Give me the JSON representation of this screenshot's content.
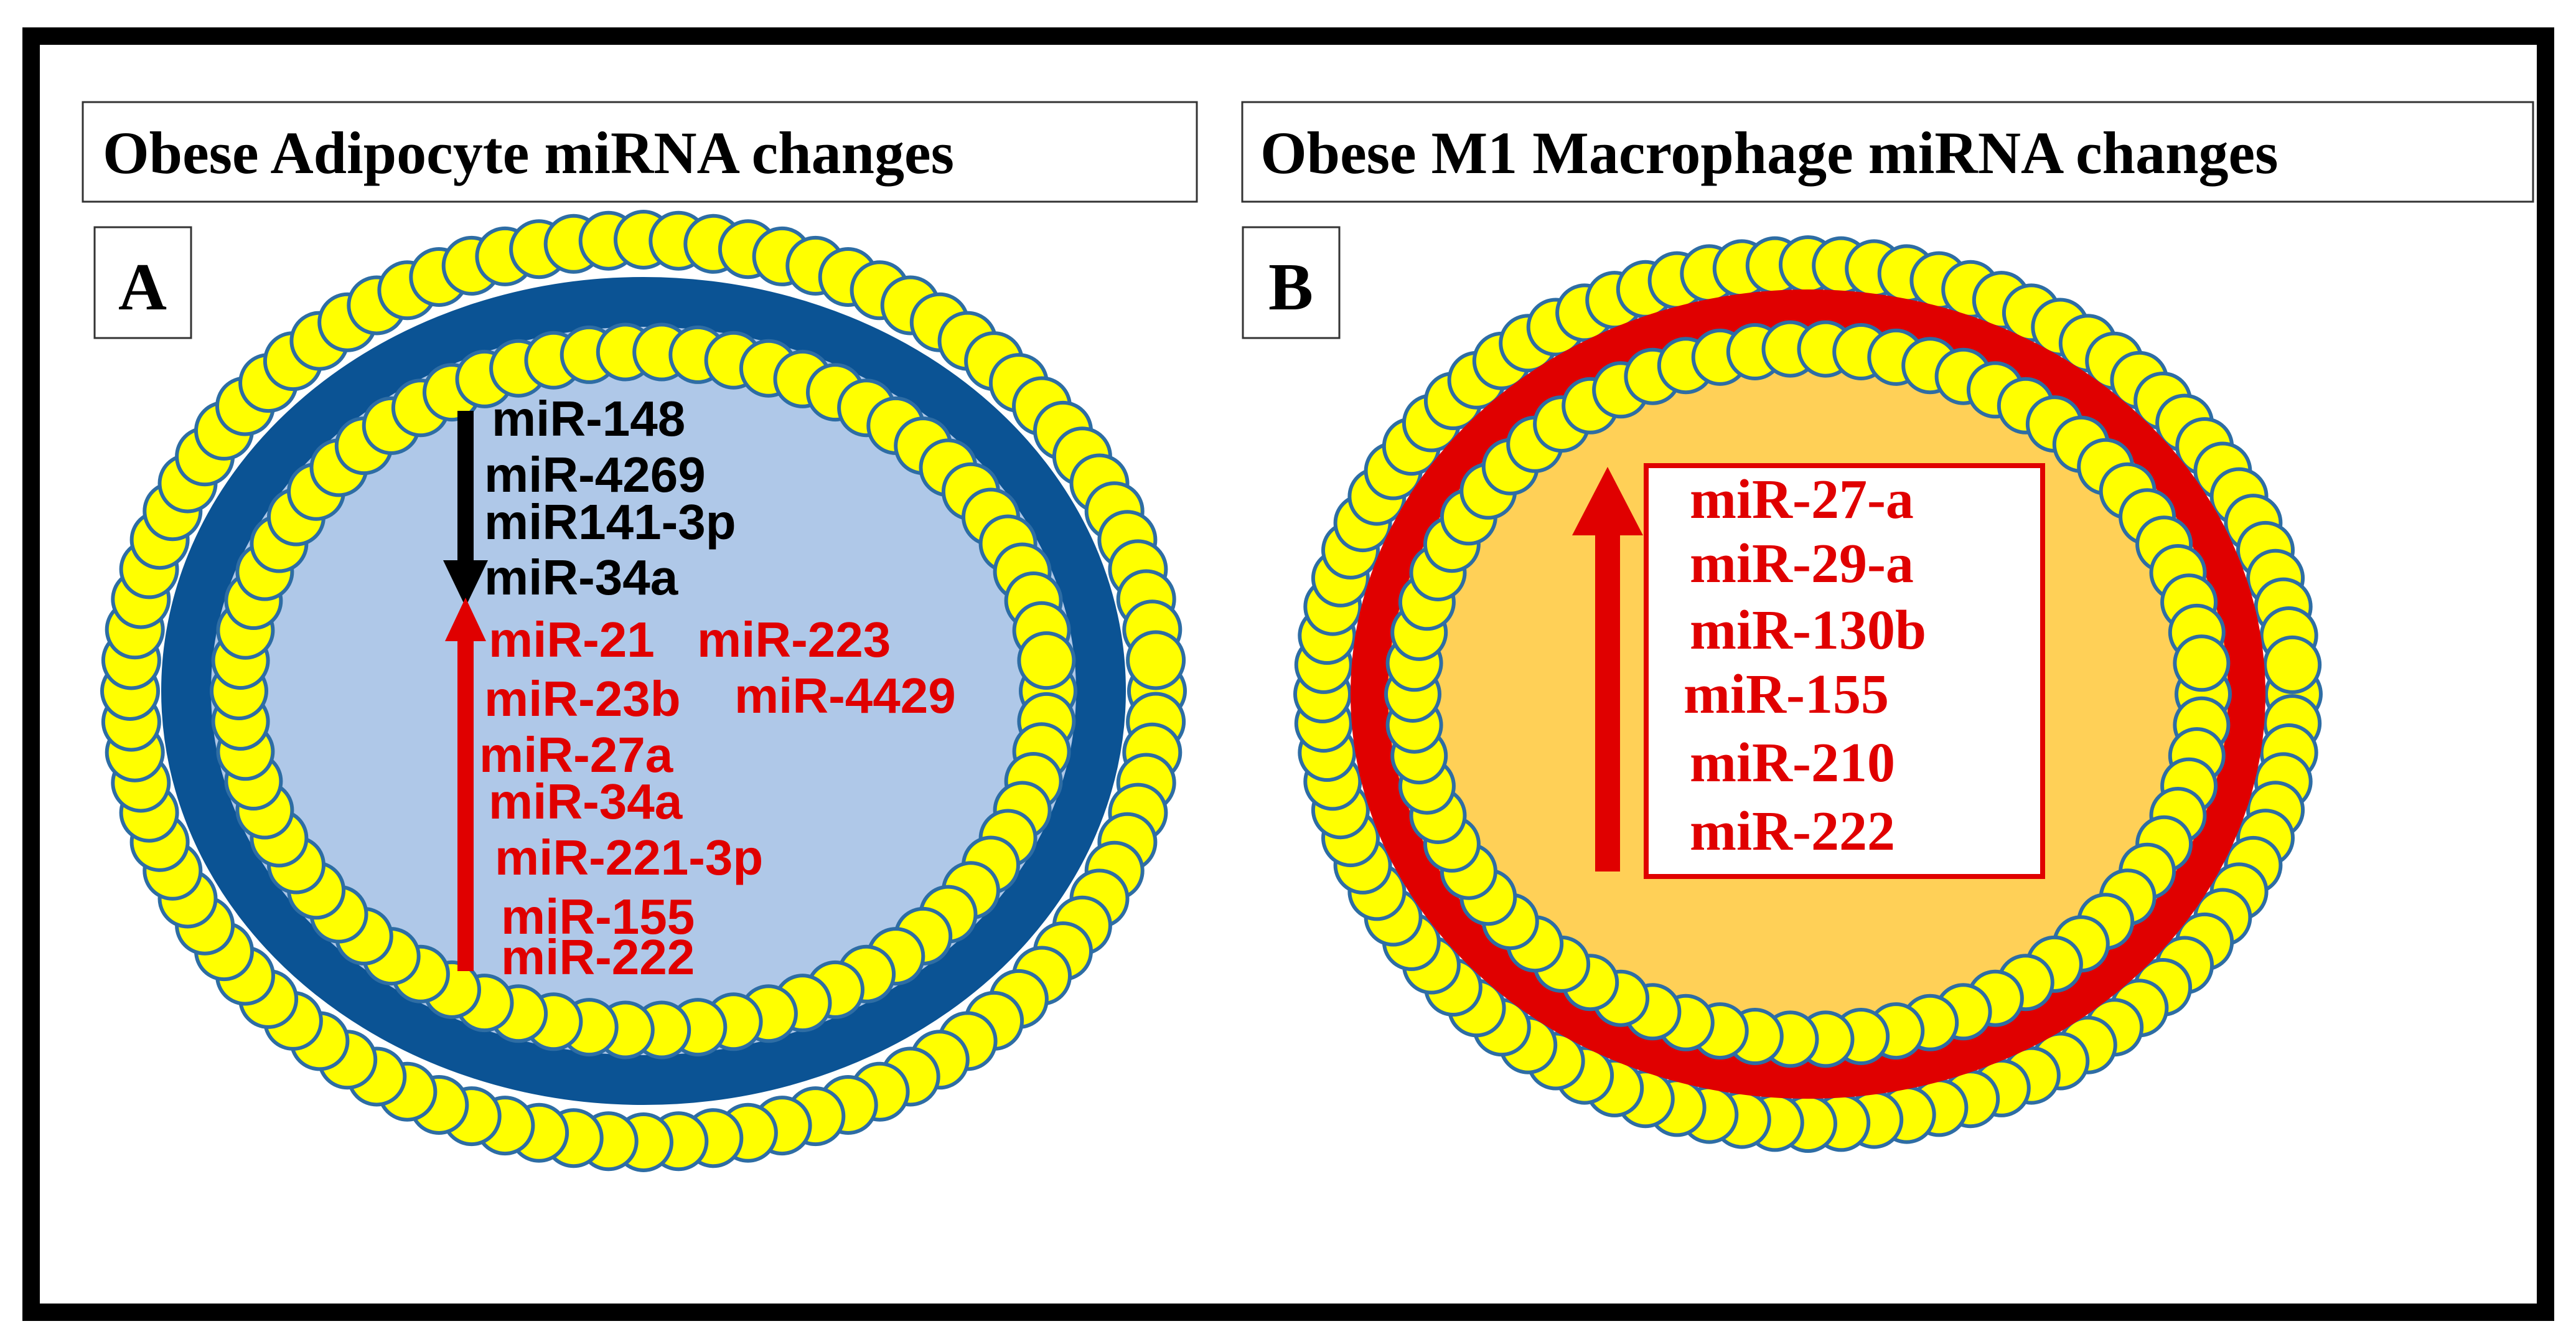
{
  "panel_a": {
    "title": "Obese Adipocyte miRNA changes",
    "label": "A",
    "down_mirnas": [
      "miR-148",
      "miR-4269",
      "miR141-3p",
      "miR-34a"
    ],
    "up_mirnas_left": [
      "miR-21",
      "miR-23b",
      "miR-27a",
      "miR-34a",
      "miR-221-3p",
      "miR-155",
      "miR-222"
    ],
    "up_mirnas_right": [
      "miR-223",
      "miR-4429"
    ],
    "colors": {
      "membrane": "#0b5394",
      "interior": "#afc8e8",
      "beads": "#ffff00",
      "bead_outline": "#2e6da4",
      "down": "#000000",
      "up": "#e00000"
    }
  },
  "panel_b": {
    "title": "Obese M1 Macrophage miRNA changes",
    "label": "B",
    "up_mirnas": [
      "miR-27-a",
      "miR-29-a",
      "miR-130b",
      "miR-155",
      "miR-210",
      "miR-222"
    ],
    "colors": {
      "membrane": "#e00000",
      "interior": "#ffd057",
      "beads": "#ffff00",
      "bead_outline": "#2e6da4",
      "up": "#e00000"
    }
  }
}
